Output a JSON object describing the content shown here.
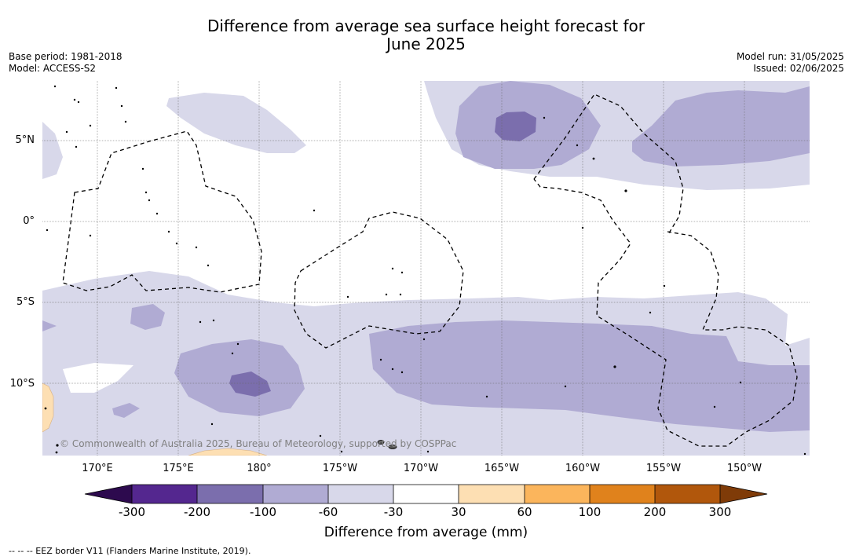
{
  "title_line1": "Difference from average sea surface height forecast for",
  "title_line2": "June 2025",
  "meta": {
    "base_period": "Base period: 1981-2018",
    "model": "Model: ACCESS-S2",
    "model_run": "Model run: 31/05/2025",
    "issued": "Issued: 02/06/2025"
  },
  "lat_labels": [
    "5°N",
    "0°",
    "5°S",
    "10°S"
  ],
  "lon_labels": [
    "170°E",
    "175°E",
    "180°",
    "175°W",
    "170°W",
    "165°W",
    "160°W",
    "155°W",
    "150°W"
  ],
  "colorbar": {
    "title": "Difference from average (mm)",
    "ticks": [
      "-300",
      "-200",
      "-100",
      "-60",
      "-30",
      "30",
      "60",
      "100",
      "200",
      "300"
    ],
    "colors": {
      "below_min": "#2d0a4e",
      "b_-300_-200": "#54278f",
      "b_-200_-100": "#7b6ead",
      "b_-100_-60": "#b0abd3",
      "b_-60_-30": "#d8d8ea",
      "b_-30_30": "#ffffff",
      "b_30_60": "#fddfb3",
      "b_60_100": "#fbb55c",
      "b_100_200": "#e0821c",
      "b_200_300": "#b1570c",
      "above_max": "#7f3b08"
    }
  },
  "copyright": "© Commonwealth of Australia 2025, Bureau of Meteorology, supported by COSPPac",
  "footnote": "--  --  -- EEZ border V11 (Flanders Marine Institute, 2019)."
}
